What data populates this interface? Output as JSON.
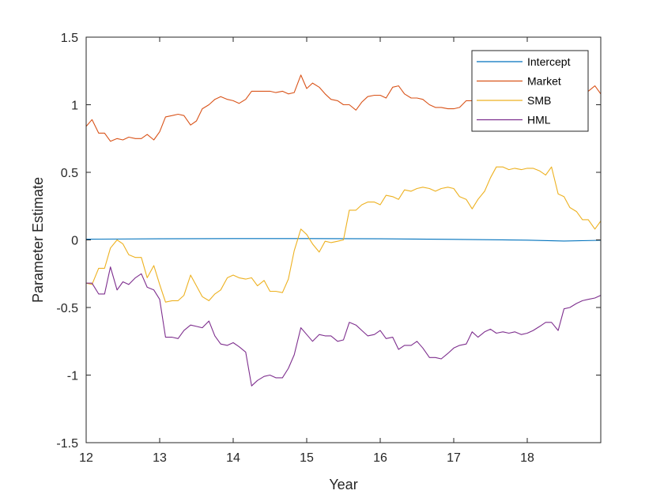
{
  "chart_data": {
    "type": "line",
    "title": "",
    "xlabel": "Year",
    "ylabel": "Parameter Estimate",
    "xlim": [
      12,
      19
    ],
    "ylim": [
      -1.5,
      1.5
    ],
    "xticks": [
      12,
      13,
      14,
      15,
      16,
      17,
      18
    ],
    "xtick_labels": [
      "12",
      "13",
      "14",
      "15",
      "16",
      "17",
      "18"
    ],
    "yticks": [
      -1.5,
      -1,
      -0.5,
      0,
      0.5,
      1,
      1.5
    ],
    "ytick_labels": [
      "-1.5",
      "-1",
      "-0.5",
      "0",
      "0.5",
      "1",
      "1.5"
    ],
    "grid": false,
    "legend_position": "top-right",
    "series": [
      {
        "name": "Intercept",
        "color": "#0072BD",
        "x": [
          12.0,
          13.0,
          14.0,
          15.0,
          16.0,
          17.0,
          18.0,
          18.5,
          19.0
        ],
        "y": [
          0.005,
          0.008,
          0.01,
          0.01,
          0.008,
          0.004,
          -0.002,
          -0.008,
          -0.003
        ]
      },
      {
        "name": "Market",
        "color": "#D95319",
        "x": [
          12.0,
          12.08,
          12.17,
          12.25,
          12.33,
          12.42,
          12.5,
          12.58,
          12.67,
          12.75,
          12.83,
          12.92,
          13.0,
          13.08,
          13.17,
          13.25,
          13.33,
          13.42,
          13.5,
          13.58,
          13.67,
          13.75,
          13.83,
          13.92,
          14.0,
          14.08,
          14.17,
          14.25,
          14.33,
          14.42,
          14.5,
          14.58,
          14.67,
          14.75,
          14.83,
          14.92,
          15.0,
          15.08,
          15.17,
          15.25,
          15.33,
          15.42,
          15.5,
          15.58,
          15.67,
          15.75,
          15.83,
          15.92,
          16.0,
          16.08,
          16.17,
          16.25,
          16.33,
          16.42,
          16.5,
          16.58,
          16.67,
          16.75,
          16.83,
          16.92,
          17.0,
          17.08,
          17.17,
          17.25,
          17.33,
          17.42,
          17.5,
          17.58,
          17.67,
          17.75,
          17.83,
          17.92,
          18.0,
          18.08,
          18.17,
          18.25,
          18.33,
          18.42,
          18.5,
          18.58,
          18.67,
          18.75,
          18.83,
          18.92,
          19.0
        ],
        "y": [
          0.84,
          0.89,
          0.79,
          0.79,
          0.73,
          0.75,
          0.74,
          0.76,
          0.75,
          0.75,
          0.78,
          0.74,
          0.8,
          0.91,
          0.92,
          0.93,
          0.92,
          0.85,
          0.88,
          0.97,
          1.0,
          1.04,
          1.06,
          1.04,
          1.03,
          1.01,
          1.04,
          1.1,
          1.1,
          1.1,
          1.1,
          1.09,
          1.1,
          1.08,
          1.09,
          1.22,
          1.12,
          1.16,
          1.13,
          1.08,
          1.04,
          1.03,
          1.0,
          1.0,
          0.96,
          1.02,
          1.06,
          1.07,
          1.07,
          1.05,
          1.13,
          1.14,
          1.08,
          1.05,
          1.05,
          1.04,
          1.0,
          0.98,
          0.98,
          0.97,
          0.97,
          0.98,
          1.03,
          1.03,
          1.05,
          1.06,
          1.07,
          1.05,
          1.06,
          1.04,
          1.05,
          1.04,
          1.05,
          1.06,
          1.07,
          1.06,
          1.05,
          1.06,
          1.1,
          1.11,
          1.09,
          1.08,
          1.1,
          1.14,
          1.08
        ]
      },
      {
        "name": "SMB",
        "color": "#EDB120",
        "x": [
          12.0,
          12.08,
          12.17,
          12.25,
          12.33,
          12.42,
          12.5,
          12.58,
          12.67,
          12.75,
          12.83,
          12.92,
          13.0,
          13.08,
          13.17,
          13.25,
          13.33,
          13.42,
          13.5,
          13.58,
          13.67,
          13.75,
          13.83,
          13.92,
          14.0,
          14.08,
          14.17,
          14.25,
          14.33,
          14.42,
          14.5,
          14.58,
          14.67,
          14.75,
          14.83,
          14.92,
          15.0,
          15.08,
          15.17,
          15.25,
          15.33,
          15.42,
          15.5,
          15.58,
          15.67,
          15.75,
          15.83,
          15.92,
          16.0,
          16.08,
          16.17,
          16.25,
          16.33,
          16.42,
          16.5,
          16.58,
          16.67,
          16.75,
          16.83,
          16.92,
          17.0,
          17.08,
          17.17,
          17.25,
          17.33,
          17.42,
          17.5,
          17.58,
          17.67,
          17.75,
          17.83,
          17.92,
          18.0,
          18.08,
          18.17,
          18.25,
          18.33,
          18.42,
          18.5,
          18.58,
          18.67,
          18.75,
          18.83,
          18.92,
          19.0
        ],
        "y": [
          -0.32,
          -0.33,
          -0.21,
          -0.21,
          -0.06,
          0.0,
          -0.03,
          -0.11,
          -0.13,
          -0.13,
          -0.28,
          -0.19,
          -0.33,
          -0.46,
          -0.45,
          -0.45,
          -0.41,
          -0.26,
          -0.34,
          -0.42,
          -0.45,
          -0.4,
          -0.37,
          -0.28,
          -0.26,
          -0.28,
          -0.29,
          -0.28,
          -0.34,
          -0.3,
          -0.38,
          -0.38,
          -0.39,
          -0.29,
          -0.08,
          0.08,
          0.04,
          -0.03,
          -0.09,
          -0.01,
          -0.02,
          -0.01,
          0.0,
          0.22,
          0.22,
          0.26,
          0.28,
          0.28,
          0.26,
          0.33,
          0.32,
          0.3,
          0.37,
          0.36,
          0.38,
          0.39,
          0.38,
          0.36,
          0.38,
          0.39,
          0.38,
          0.32,
          0.3,
          0.23,
          0.3,
          0.36,
          0.46,
          0.54,
          0.54,
          0.52,
          0.53,
          0.52,
          0.53,
          0.53,
          0.51,
          0.48,
          0.54,
          0.34,
          0.32,
          0.24,
          0.21,
          0.15,
          0.15,
          0.08,
          0.14
        ]
      },
      {
        "name": "HML",
        "color": "#7E2F8E",
        "x": [
          12.0,
          12.08,
          12.17,
          12.25,
          12.33,
          12.42,
          12.5,
          12.58,
          12.67,
          12.75,
          12.83,
          12.92,
          13.0,
          13.08,
          13.17,
          13.25,
          13.33,
          13.42,
          13.5,
          13.58,
          13.67,
          13.75,
          13.83,
          13.92,
          14.0,
          14.08,
          14.17,
          14.25,
          14.33,
          14.42,
          14.5,
          14.58,
          14.67,
          14.75,
          14.83,
          14.92,
          15.0,
          15.08,
          15.17,
          15.25,
          15.33,
          15.42,
          15.5,
          15.58,
          15.67,
          15.75,
          15.83,
          15.92,
          16.0,
          16.08,
          16.17,
          16.25,
          16.33,
          16.42,
          16.5,
          16.58,
          16.67,
          16.75,
          16.83,
          16.92,
          17.0,
          17.08,
          17.17,
          17.25,
          17.33,
          17.42,
          17.5,
          17.58,
          17.67,
          17.75,
          17.83,
          17.92,
          18.0,
          18.08,
          18.17,
          18.25,
          18.33,
          18.42,
          18.5,
          18.58,
          18.67,
          18.75,
          18.83,
          18.92,
          19.0
        ],
        "y": [
          -0.32,
          -0.32,
          -0.4,
          -0.4,
          -0.2,
          -0.37,
          -0.31,
          -0.33,
          -0.28,
          -0.25,
          -0.35,
          -0.37,
          -0.44,
          -0.72,
          -0.72,
          -0.73,
          -0.67,
          -0.63,
          -0.64,
          -0.65,
          -0.6,
          -0.71,
          -0.77,
          -0.78,
          -0.76,
          -0.79,
          -0.83,
          -1.08,
          -1.04,
          -1.01,
          -1.0,
          -1.02,
          -1.02,
          -0.95,
          -0.85,
          -0.65,
          -0.7,
          -0.75,
          -0.7,
          -0.71,
          -0.71,
          -0.75,
          -0.74,
          -0.61,
          -0.63,
          -0.67,
          -0.71,
          -0.7,
          -0.67,
          -0.73,
          -0.72,
          -0.81,
          -0.78,
          -0.78,
          -0.75,
          -0.8,
          -0.87,
          -0.87,
          -0.88,
          -0.84,
          -0.8,
          -0.78,
          -0.77,
          -0.68,
          -0.72,
          -0.68,
          -0.66,
          -0.69,
          -0.68,
          -0.69,
          -0.68,
          -0.7,
          -0.69,
          -0.67,
          -0.64,
          -0.61,
          -0.61,
          -0.67,
          -0.51,
          -0.5,
          -0.47,
          -0.45,
          -0.44,
          -0.43,
          -0.41
        ]
      }
    ]
  }
}
